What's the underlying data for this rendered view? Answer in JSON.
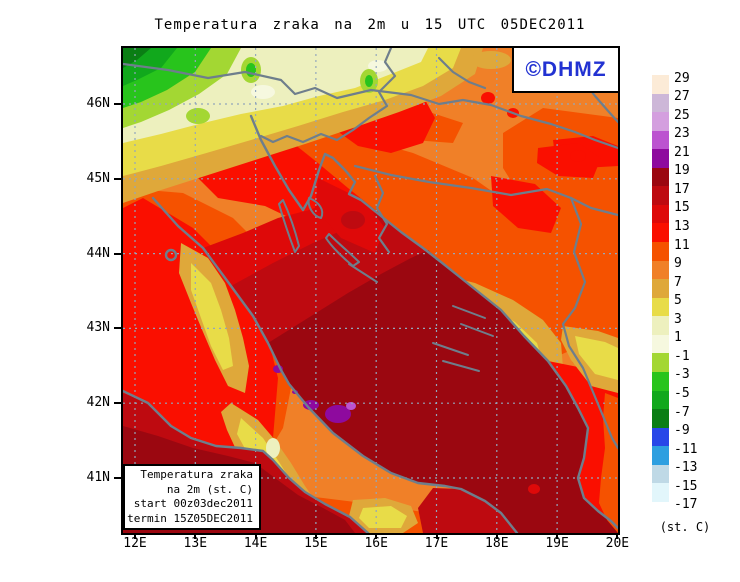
{
  "title": "Temperatura zraka na 2m u 15 UTC 05DEC2011",
  "watermark": "©DHMZ",
  "legend_box": {
    "line1": "Temperatura zraka",
    "line2": "na 2m (st. C)",
    "line3": "start 00z03dec2011",
    "line4": "termin 15Z05DEC2011"
  },
  "axes": {
    "lat": [
      "46N",
      "45N",
      "44N",
      "43N",
      "42N",
      "41N"
    ],
    "lon": [
      "12E",
      "13E",
      "14E",
      "15E",
      "16E",
      "17E",
      "18E",
      "19E",
      "20E"
    ]
  },
  "colorbar": {
    "unit": "(st. C)",
    "entries": [
      {
        "label": "29",
        "color": "#FCEBD7"
      },
      {
        "label": "27",
        "color": "#CDB7D8"
      },
      {
        "label": "25",
        "color": "#D49FDF"
      },
      {
        "label": "23",
        "color": "#BC53D0"
      },
      {
        "label": "21",
        "color": "#8E0A9E"
      },
      {
        "label": "19",
        "color": "#9B0710"
      },
      {
        "label": "17",
        "color": "#BE0A10"
      },
      {
        "label": "15",
        "color": "#DE0909"
      },
      {
        "label": "13",
        "color": "#FA0F00"
      },
      {
        "label": "11",
        "color": "#F55200"
      },
      {
        "label": "9",
        "color": "#F08028"
      },
      {
        "label": "7",
        "color": "#DFA83A"
      },
      {
        "label": "5",
        "color": "#E8DC48"
      },
      {
        "label": "3",
        "color": "#EDF0BE"
      },
      {
        "label": "1",
        "color": "#F6F8DF"
      },
      {
        "label": "-1",
        "color": "#A3D733"
      },
      {
        "label": "-3",
        "color": "#28C41C"
      },
      {
        "label": "-5",
        "color": "#11A81C"
      },
      {
        "label": "-7",
        "color": "#0A7E14"
      },
      {
        "label": "-9",
        "color": "#2847E8"
      },
      {
        "label": "-11",
        "color": "#2E9FE0"
      },
      {
        "label": "-13",
        "color": "#BFD9E6"
      },
      {
        "label": "-15",
        "color": "#E2F6FB"
      },
      {
        "label": "-17",
        "color": "#FFFFFF"
      }
    ]
  },
  "map_colors": {
    "land_base": "#F08028",
    "coastline": "#6E7E8C",
    "grid": "#93A7BC",
    "frame": "#000000",
    "watermark_blue": "#2232D2"
  }
}
